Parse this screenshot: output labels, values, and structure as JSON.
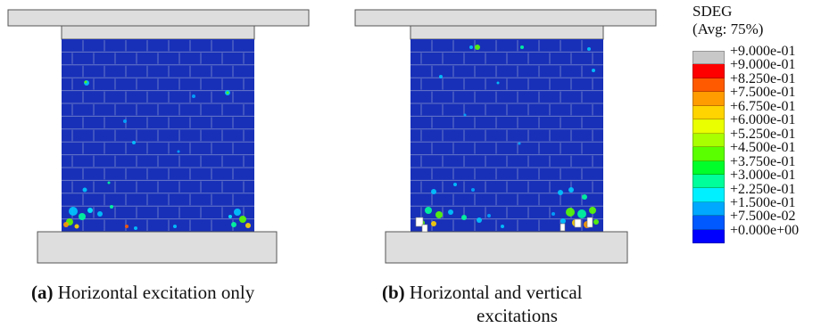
{
  "panels": [
    {
      "id": "a",
      "caption_letter": "(a)",
      "caption_text": "Horizontal excitation only",
      "caption_text_2": ""
    },
    {
      "id": "b",
      "caption_letter": "(b)",
      "caption_text": "Horizontal and vertical",
      "caption_text_2": "excitations"
    }
  ],
  "legend": {
    "variable": "SDEG",
    "subtitle": "(Avg: 75%)",
    "entries": [
      {
        "label": "+9.000e-01",
        "color": "#c8c8c8"
      },
      {
        "label": "+9.000e-01",
        "color": "#ff0000"
      },
      {
        "label": "+8.250e-01",
        "color": "#ff5a00"
      },
      {
        "label": "+7.500e-01",
        "color": "#ff9c00"
      },
      {
        "label": "+6.750e-01",
        "color": "#ffd400"
      },
      {
        "label": "+6.000e-01",
        "color": "#eaff00"
      },
      {
        "label": "+5.250e-01",
        "color": "#a9ff00"
      },
      {
        "label": "+4.500e-01",
        "color": "#5aff00"
      },
      {
        "label": "+3.750e-01",
        "color": "#00ff2a"
      },
      {
        "label": "+3.000e-01",
        "color": "#00ff9a"
      },
      {
        "label": "+2.250e-01",
        "color": "#00f0ff"
      },
      {
        "label": "+1.500e-01",
        "color": "#00a8ff"
      },
      {
        "label": "+7.500e-02",
        "color": "#0058ff"
      },
      {
        "label": "+0.000e+00",
        "color": "#0000ff"
      }
    ]
  },
  "colors": {
    "wall_blue": "#1830b8",
    "mortar": "#6878c8",
    "beam_fill": "#dedede",
    "beam_stroke": "#555555"
  }
}
